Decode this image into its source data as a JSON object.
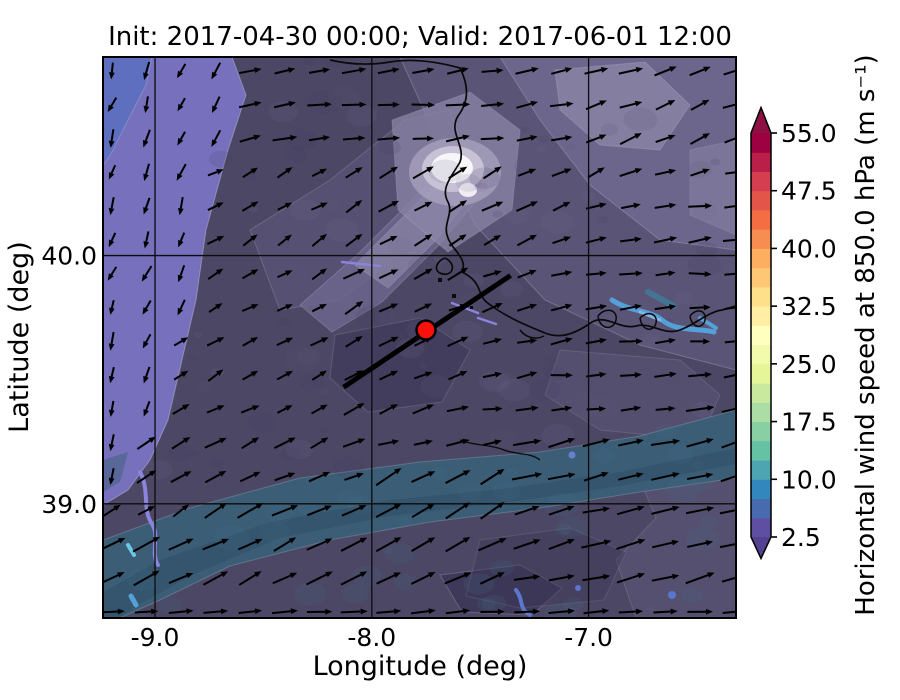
{
  "title": "Init: 2017-04-30 00:00; Valid: 2017-06-01 12:00",
  "axes": {
    "xlabel": "Longitude (deg)",
    "ylabel": "Latitude (deg)",
    "x_tick_labels": [
      "-9.0",
      "-8.0",
      "-7.0"
    ],
    "y_tick_labels": [
      "40.0",
      "39.0"
    ]
  },
  "colorbar": {
    "label": "Horizontal wind speed at 850.0 hPa (m s⁻¹)",
    "tick_labels": [
      "55.0",
      "47.5",
      "40.0",
      "32.5",
      "25.0",
      "17.5",
      "10.0",
      "2.5"
    ],
    "tick_values": [
      55.0,
      47.5,
      40.0,
      32.5,
      25.0,
      17.5,
      10.0,
      2.5
    ],
    "range": [
      2.5,
      55.0
    ],
    "band_step": 2.5,
    "band_colors_low_to_high": [
      "#5e4fa2",
      "#486baf",
      "#3288bd",
      "#4ca5b1",
      "#66c2a5",
      "#88cfa4",
      "#abdda4",
      "#c8e99e",
      "#e6f598",
      "#f2faab",
      "#ffffbf",
      "#feefa5",
      "#fee08b",
      "#fdc776",
      "#fdae61",
      "#f88d52",
      "#f46d43",
      "#e45549",
      "#d53e4f",
      "#b91f48",
      "#9e0142"
    ],
    "extend_under_color": "#53428f",
    "extend_over_color": "#8e0f44"
  },
  "chart_data": {
    "type": "heatmap",
    "title": "Init: 2017-04-30 00:00; Valid: 2017-06-01 12:00",
    "xlabel": "Longitude (deg)",
    "ylabel": "Latitude (deg)",
    "x_tick_values": [
      -9.0,
      -8.0,
      -7.0
    ],
    "y_tick_values": [
      40.0,
      39.0
    ],
    "xlim": [
      -9.24,
      -6.32
    ],
    "ylim": [
      38.54,
      40.8
    ],
    "grid": true,
    "colorbar_label": "Horizontal wind speed at 850.0 hPa (m s⁻¹)",
    "colorbar_range": [
      2.5,
      55.0
    ],
    "colorbar_extend": "both",
    "field_summary": "Filled contours of 850 hPa wind speed over central Portugal/Spain; mostly 2.5-7.5 m/s (dark purple), a lighter purple 2.5 m/s band along the Atlantic coast in the west, a teal 7.5-12.5 m/s band running SW-NE across the south, and a small bright white speed minimum/cloud patch near lon -7.45, lat 40.35",
    "overlays": {
      "point_marker": {
        "lon": -7.75,
        "lat": 39.7,
        "style": "red filled circle with black edge"
      },
      "transect_line": {
        "from": {
          "lon": -8.13,
          "lat": 39.47
        },
        "to": {
          "lon": -7.36,
          "lat": 39.92
        },
        "style": "thick black straight line through the red marker"
      },
      "wind_vectors": "black quiver arrows on a regular grid; weak south/southwestward flow in the coastal band at far west, light-to-moderate east-northeastward flow elsewhere, longest arrows in the southern teal band",
      "coastlines": "black irregular coastline/river and reservoir outlines across upper-centre and middle-right of the map"
    }
  },
  "map_colors": {
    "base": "#4c4765",
    "coastal_light_band": "#7670bd",
    "corner_blue": "#5f6fc0",
    "teal_band": "#3b5e76",
    "teal_band_dark": "#33536b",
    "south_dark": "#3b3655",
    "mottle_mid": "#5b5578",
    "mottle_light": "#6e6890",
    "mottle_lighter": "#8a84a6",
    "halo": "#a9a3c0",
    "white_patch": "#f7f6f8",
    "river_periwinkle": "#8a84dc",
    "water_blue": "#55a0d8",
    "water_light_blue": "#7db9e4",
    "water_teal": "#3f7a96",
    "water_cyan": "#6cc6e4",
    "coastline": "#0a0a0a",
    "marker_red": "#fb100c",
    "arrow_color": "#000000"
  }
}
